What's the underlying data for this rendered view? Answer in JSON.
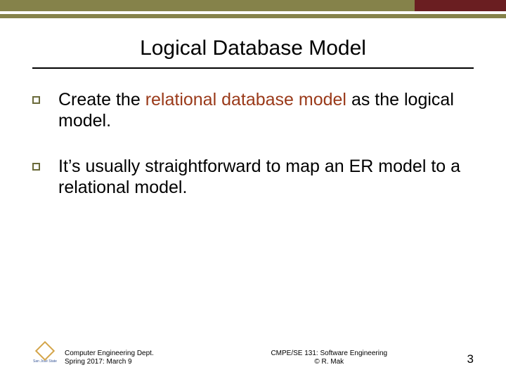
{
  "colors": {
    "olive": "#85824a",
    "olive_gap": "#ffffff",
    "maroon": "#6a1e21",
    "rule": "#000000",
    "bullet_border": "#6a6a3a",
    "highlight": "#9a3a1a"
  },
  "title": "Logical Database Model",
  "bullets": [
    {
      "pre": "Create the ",
      "hl": "relational database model",
      "post": " as the logical model."
    },
    {
      "pre": "It’s usually straightforward to map an ER model to a relational model.",
      "hl": "",
      "post": ""
    }
  ],
  "footer": {
    "left_line1": "Computer Engineering Dept.",
    "left_line2": "Spring 2017: March 9",
    "center_line1": "CMPE/SE 131: Software Engineering",
    "center_line2": "© R. Mak",
    "page": "3",
    "logo_label": "San José State"
  }
}
